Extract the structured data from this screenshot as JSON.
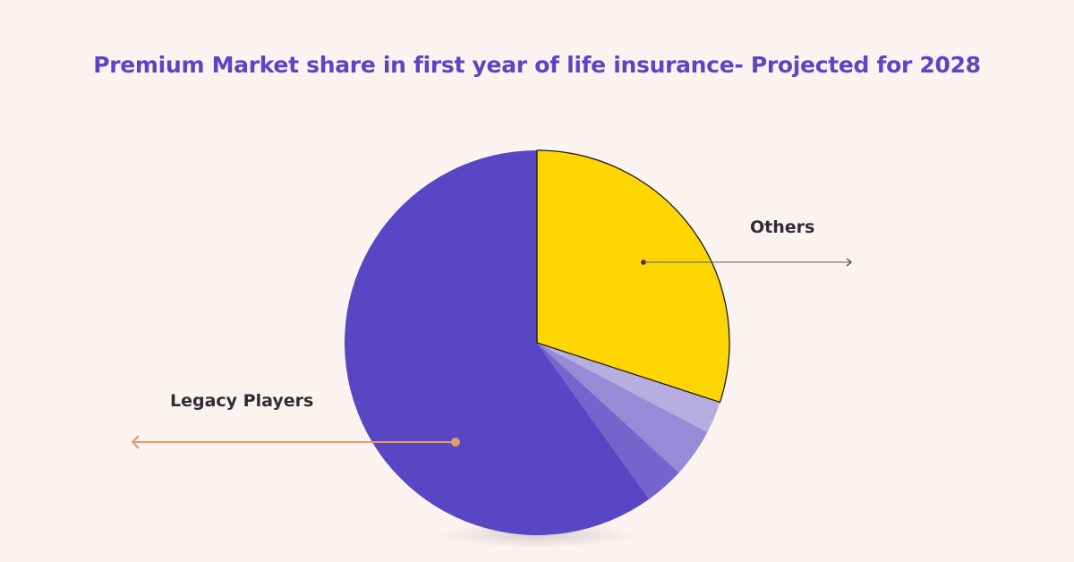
{
  "title": "Premium Market share in first year of life insurance- Projected for 2028",
  "colors": {
    "background": "#fbf3ef",
    "title": "#5a46c5",
    "legacy": "#5846c4",
    "others": "#ffd600",
    "slice_a": "#b8ade0",
    "slice_b": "#978ad6",
    "slice_c": "#7564cc",
    "others_arrow": "#8c8a8e",
    "legacy_arrow": "#e39c6a",
    "label_text": "#2d2d35"
  },
  "labels": {
    "others": "Others",
    "legacy": "Legacy Players"
  },
  "chart_data": {
    "type": "pie",
    "title": "Premium Market share in first year of life insurance- Projected for 2028",
    "start_angle_deg": 0,
    "direction": "clockwise",
    "categories": [
      "Others",
      "Unlabeled segment 1",
      "Unlabeled segment 2",
      "Unlabeled segment 3",
      "Legacy Players"
    ],
    "values": [
      30,
      2.7,
      4.1,
      3.3,
      59.9
    ],
    "unit": "%",
    "labeled": [
      "Others",
      "Legacy Players"
    ],
    "legend": "none (callout arrows to labels)"
  }
}
